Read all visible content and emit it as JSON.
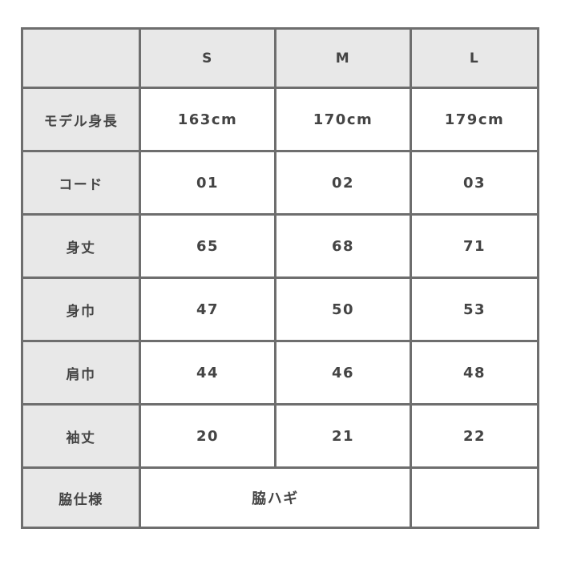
{
  "header": [
    "",
    "S",
    "M",
    "L"
  ],
  "rows": [
    {
      "label": "モデル身長",
      "values": [
        "163cm",
        "170cm",
        "179cm"
      ]
    },
    {
      "label": "コード",
      "values": [
        "01",
        "02",
        "03"
      ]
    },
    {
      "label": "身丈",
      "values": [
        "65",
        "68",
        "71"
      ]
    },
    {
      "label": "身巾",
      "values": [
        "47",
        "50",
        "53"
      ]
    },
    {
      "label": "肩巾",
      "values": [
        "44",
        "46",
        "48"
      ]
    },
    {
      "label": "袖丈",
      "values": [
        "20",
        "21",
        "22"
      ]
    }
  ],
  "last_row": {
    "label": "脇仕様",
    "value": "脇ハギ",
    "extra": ""
  },
  "colors": {
    "border": "#6e6e6e",
    "header_fill": "#e8e8e8",
    "text": "#444444"
  }
}
